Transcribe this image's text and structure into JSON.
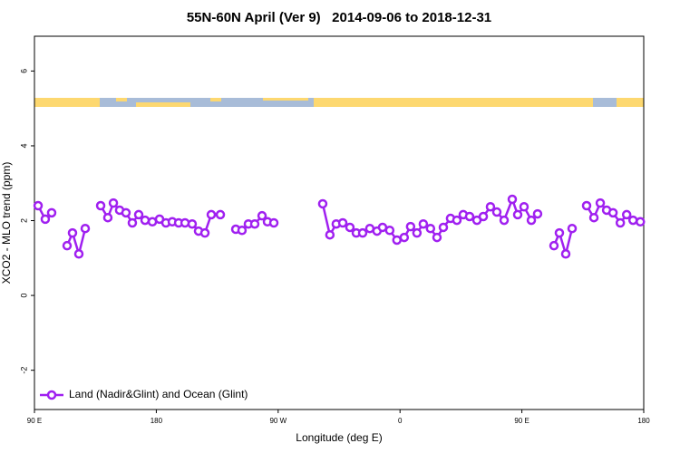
{
  "chart_data": {
    "type": "line",
    "title": "55N-60N April (Ver 9)   2014-09-06 to 2018-12-31",
    "xlabel": "Longitude (deg E)",
    "ylabel": "XCO2 - MLO trend (ppm)",
    "xlim": [
      90,
      540
    ],
    "ylim": [
      -3.05,
      6.93
    ],
    "xticks": [
      {
        "value": 90,
        "label": "90 E"
      },
      180,
      {
        "value": 270,
        "label": "90 W"
      },
      {
        "value": 360,
        "label": "0"
      },
      {
        "value": 450,
        "label": "90 E"
      },
      {
        "value": 540,
        "label": "180"
      }
    ],
    "yticks": [
      -2,
      0,
      2,
      4,
      6
    ],
    "grid": false,
    "legend": "bottom-left",
    "series": [
      {
        "name": "Land (Nadir&Glint) and Ocean (Glint)",
        "color": "#a020f0",
        "x": [
          92.7,
          98.0,
          102.7,
          null,
          114.1,
          118.1,
          122.8,
          127.5,
          null,
          138.9,
          144.2,
          148.3,
          152.9,
          157.6,
          162.3,
          167.0,
          171.7,
          177.1,
          182.4,
          187.1,
          191.8,
          196.5,
          201.2,
          206.5,
          211.2,
          215.9,
          220.6,
          227.3,
          null,
          238.7,
          243.3,
          248.0,
          252.7,
          258.1,
          262.1,
          266.8,
          null,
          302.9,
          308.2,
          312.9,
          317.7,
          323.0,
          327.7,
          332.4,
          337.7,
          343.0,
          347.1,
          352.4,
          357.7,
          363.1,
          367.8,
          372.5,
          377.2,
          382.5,
          387.3,
          392.0,
          397.3,
          402.0,
          406.7,
          411.4,
          416.8,
          421.5,
          426.8,
          431.5,
          436.9,
          442.9,
          446.9,
          451.6,
          457.0,
          461.6,
          null,
          473.7,
          477.7,
          482.4,
          487.1,
          null,
          497.8,
          503.2,
          507.9,
          512.6,
          517.3,
          522.7,
          527.4,
          532.1,
          537.5
        ],
        "values": [
          2.4,
          2.04,
          2.21,
          null,
          1.33,
          1.67,
          1.11,
          1.79,
          null,
          2.4,
          2.08,
          2.47,
          2.28,
          2.21,
          1.94,
          2.16,
          2.01,
          1.97,
          2.04,
          1.94,
          1.97,
          1.94,
          1.94,
          1.91,
          1.72,
          1.67,
          2.16,
          2.16,
          null,
          1.77,
          1.74,
          1.91,
          1.91,
          2.13,
          1.97,
          1.94,
          null,
          2.45,
          1.62,
          1.91,
          1.94,
          1.82,
          1.67,
          1.67,
          1.79,
          1.72,
          1.82,
          1.74,
          1.48,
          1.55,
          1.84,
          1.67,
          1.91,
          1.79,
          1.55,
          1.82,
          2.06,
          2.01,
          2.16,
          2.11,
          2.01,
          2.11,
          2.37,
          2.23,
          2.01,
          2.57,
          2.16,
          2.37,
          2.01,
          2.18,
          null,
          1.33,
          1.67,
          1.11,
          1.79,
          null,
          2.4,
          2.08,
          2.47,
          2.28,
          2.21,
          1.94,
          2.16,
          2.01,
          1.97
        ]
      }
    ]
  }
}
